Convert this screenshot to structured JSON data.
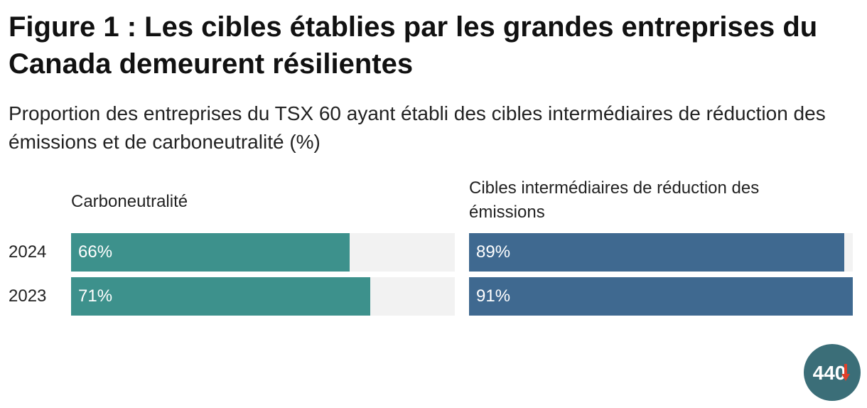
{
  "title": "Figure 1 : Les cibles établies par les grandes entreprises du Canada demeurent résilientes",
  "subtitle": "Proportion des entreprises du TSX 60 ayant établi des cibles intermédiaires de réduction des émissions et de carboneutralité (%)",
  "logo": {
    "text": "440",
    "icon": "440-logo-icon",
    "color": "#3b6e78",
    "accent": "#e0402a"
  },
  "colors": {
    "track": "#f2f2f2",
    "teal": "#3d918c",
    "blue": "#3f6990"
  },
  "chart_data": [
    {
      "type": "bar",
      "orientation": "horizontal",
      "title": "Carboneutralité",
      "categories": [
        "2024",
        "2023"
      ],
      "values": [
        66,
        71
      ],
      "value_labels": [
        "66%",
        "71%"
      ],
      "xlim": [
        0,
        91
      ],
      "color": "#3d918c"
    },
    {
      "type": "bar",
      "orientation": "horizontal",
      "title": "Cibles intermédiaires de réduction des émissions",
      "categories": [
        "2024",
        "2023"
      ],
      "values": [
        89,
        91
      ],
      "value_labels": [
        "89%",
        "91%"
      ],
      "xlim": [
        0,
        91
      ],
      "color": "#3f6990"
    }
  ]
}
